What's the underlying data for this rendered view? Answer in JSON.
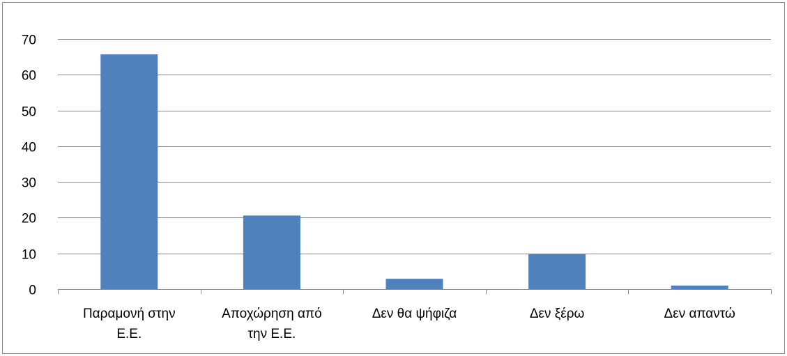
{
  "chart_data": {
    "type": "bar",
    "title": "",
    "xlabel": "",
    "ylabel": "",
    "categories": [
      [
        "Παραμονή στην",
        "Ε.Ε."
      ],
      [
        "Αποχώρηση από",
        "την Ε.Ε."
      ],
      [
        "Δεν θα ψήφιζα"
      ],
      [
        "Δεν ξέρω"
      ],
      [
        "Δεν απαντώ"
      ]
    ],
    "values": [
      65.7,
      20.6,
      2.9,
      9.8,
      1.0
    ],
    "ylim": [
      0,
      70
    ],
    "yticks": [
      0,
      10,
      20,
      30,
      40,
      50,
      60,
      70
    ],
    "grid": true,
    "legend": "none",
    "colors": {
      "bar": "#4f81bd",
      "grid": "#8c8c8c",
      "axis": "#8c8c8c"
    }
  }
}
